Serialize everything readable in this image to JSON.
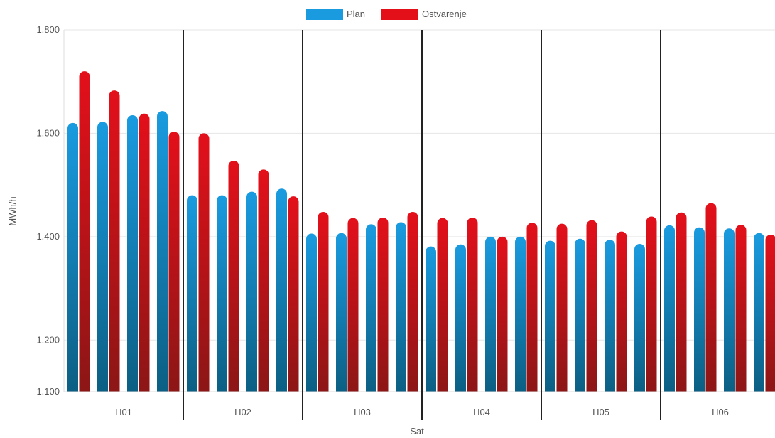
{
  "chart_data": {
    "type": "bar",
    "title": "",
    "xlabel": "Sat",
    "ylabel": "MWh/h",
    "ylim": [
      1100,
      1800
    ],
    "yticks": [
      1100,
      1200,
      1400,
      1600,
      1800
    ],
    "ytick_labels": [
      "1.100",
      "1.200",
      "1.400",
      "1.600",
      "1.800"
    ],
    "grid": true,
    "legend_position": "top-center",
    "groups": [
      "H01",
      "H02",
      "H03",
      "H04",
      "H05",
      "H06"
    ],
    "intervals_per_group": 4,
    "series": [
      {
        "name": "Plan",
        "color": "#1a9be0",
        "color_dark": "#0c5f83",
        "values": [
          1620,
          1622,
          1635,
          1643,
          1480,
          1480,
          1487,
          1493,
          1406,
          1407,
          1424,
          1428,
          1381,
          1385,
          1400,
          1400,
          1392,
          1396,
          1394,
          1386,
          1422,
          1418,
          1416,
          1407
        ]
      },
      {
        "name": "Ostvarenje",
        "color": "#e3101a",
        "color_dark": "#8c1616",
        "values": [
          1720,
          1683,
          1638,
          1603,
          1600,
          1547,
          1530,
          1478,
          1448,
          1436,
          1437,
          1448,
          1436,
          1437,
          1400,
          1427,
          1425,
          1432,
          1410,
          1439,
          1447,
          1465,
          1423,
          1404
        ]
      }
    ]
  }
}
